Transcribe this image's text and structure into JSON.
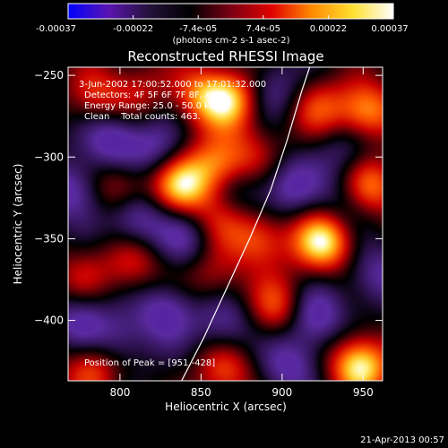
{
  "chart_data": {
    "type": "heatmap",
    "title": "Reconstructed RHESSI Image",
    "xlabel": "Heliocentric X (arcsec)",
    "ylabel": "Heliocentric Y (arcsec)",
    "xlim": [
      768,
      962
    ],
    "ylim": [
      -437,
      -245
    ],
    "x_ticks": [
      800,
      850,
      900,
      950
    ],
    "y_ticks": [
      -250,
      -300,
      -350,
      -400
    ],
    "colorbar": {
      "ticks": [
        "-0.00037",
        "-0.00022",
        "-7.4e-05",
        "7.4e-05",
        "0.00022",
        "0.00037"
      ],
      "unit_label": "(photons cm-2 s-1 asec-2)",
      "colors": [
        "#0000ff",
        "#5a14b0",
        "#24123a",
        "#000000",
        "#7a0014",
        "#e00000",
        "#ff8a00",
        "#ffe030",
        "#ffffff"
      ]
    },
    "annotations": [
      "3-Jun-2002 17:00:52.000 to 17:01:32.000",
      "Detectors: 4F 5F 6F 7F 8F, Att 1",
      "Energy Range: 25.0 - 50.0 keV",
      "Clean    Total counts: 463."
    ],
    "peak_label": "Position of Peak = [951,-428]",
    "peak": [
      951,
      -428
    ],
    "limb_curve": [
      [
        838,
        -437
      ],
      [
        852,
        -410
      ],
      [
        866,
        -380
      ],
      [
        880,
        -350
      ],
      [
        893,
        -320
      ],
      [
        903,
        -290
      ],
      [
        912,
        -260
      ],
      [
        917,
        -245
      ]
    ],
    "blobs": [
      {
        "x": 948,
        "y": -428,
        "v": 1.0
      },
      {
        "x": 897,
        "y": -392,
        "v": 0.55
      },
      {
        "x": 865,
        "y": -432,
        "v": 0.5
      },
      {
        "x": 782,
        "y": -430,
        "v": 0.55
      },
      {
        "x": 858,
        "y": -372,
        "v": 0.35
      },
      {
        "x": 808,
        "y": -365,
        "v": 0.45
      },
      {
        "x": 776,
        "y": -374,
        "v": 0.3
      },
      {
        "x": 925,
        "y": -352,
        "v": 0.95
      },
      {
        "x": 886,
        "y": -350,
        "v": 0.55
      },
      {
        "x": 862,
        "y": -338,
        "v": 0.35
      },
      {
        "x": 838,
        "y": -318,
        "v": 0.85
      },
      {
        "x": 860,
        "y": -305,
        "v": 0.65
      },
      {
        "x": 882,
        "y": -298,
        "v": 0.3
      },
      {
        "x": 800,
        "y": -318,
        "v": 0.45
      },
      {
        "x": 955,
        "y": -318,
        "v": 0.65
      },
      {
        "x": 952,
        "y": -272,
        "v": 0.75
      },
      {
        "x": 922,
        "y": -270,
        "v": 0.45
      },
      {
        "x": 850,
        "y": -262,
        "v": 0.55
      },
      {
        "x": 868,
        "y": -265,
        "v": 0.75
      },
      {
        "x": 785,
        "y": -262,
        "v": 0.45
      },
      {
        "x": 812,
        "y": -258,
        "v": 0.3
      },
      {
        "x": 795,
        "y": -290,
        "v": -0.55
      },
      {
        "x": 770,
        "y": -320,
        "v": -0.5
      },
      {
        "x": 822,
        "y": -295,
        "v": -0.4
      },
      {
        "x": 905,
        "y": -318,
        "v": -0.45
      },
      {
        "x": 872,
        "y": -322,
        "v": -0.3
      },
      {
        "x": 938,
        "y": -328,
        "v": -0.25
      },
      {
        "x": 810,
        "y": -338,
        "v": -0.55
      },
      {
        "x": 840,
        "y": -350,
        "v": -0.4
      },
      {
        "x": 828,
        "y": -395,
        "v": -0.5
      },
      {
        "x": 865,
        "y": -402,
        "v": -0.4
      },
      {
        "x": 920,
        "y": -398,
        "v": -0.55
      },
      {
        "x": 800,
        "y": -412,
        "v": -0.35
      },
      {
        "x": 905,
        "y": -428,
        "v": -0.45
      },
      {
        "x": 958,
        "y": -372,
        "v": -0.4
      },
      {
        "x": 895,
        "y": -258,
        "v": -0.35
      },
      {
        "x": 940,
        "y": -296,
        "v": -0.3
      },
      {
        "x": 775,
        "y": -400,
        "v": -0.45
      }
    ]
  },
  "footer_date": "21-Apr-2013 00:57"
}
